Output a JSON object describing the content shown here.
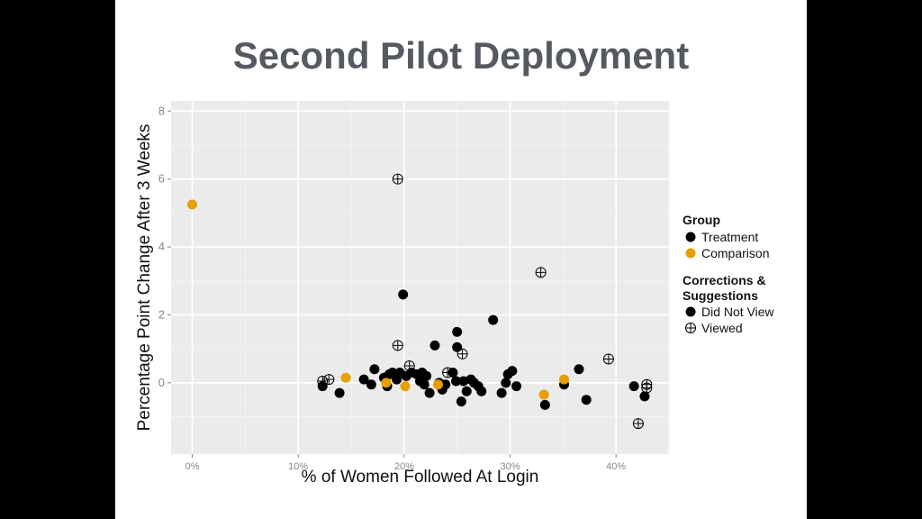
{
  "slide": {
    "title": "Second Pilot Deployment"
  },
  "chart_data": {
    "type": "scatter",
    "title": "",
    "xlabel": "% of Women Followed At Login",
    "ylabel": "Percentage Point Change After 3 Weeks",
    "xlim": [
      -2,
      45
    ],
    "ylim": [
      -2.1,
      8.3
    ],
    "x_ticks": [
      0,
      10,
      20,
      30,
      40
    ],
    "x_tick_labels": [
      "0%",
      "10%",
      "20%",
      "30%",
      "40%"
    ],
    "y_ticks": [
      0,
      2,
      4,
      6,
      8
    ],
    "y_tick_labels": [
      "0",
      "2",
      "4",
      "6",
      "8"
    ],
    "grid": true,
    "legend": {
      "placement": "right",
      "color_title": "Group",
      "color_entries": [
        {
          "label": "Treatment",
          "color": "#000000"
        },
        {
          "label": "Comparison",
          "color": "#E69F00"
        }
      ],
      "shape_title_lines": [
        "Corrections &",
        "Suggestions"
      ],
      "shape_entries": [
        {
          "label": "Did Not View",
          "shape": "filled-circle"
        },
        {
          "label": "Viewed",
          "shape": "circle-plus"
        }
      ]
    },
    "series": [
      {
        "name": "Treatment",
        "color": "#000000",
        "shape": "filled-circle",
        "points": [
          [
            12.3,
            -0.1
          ],
          [
            13.9,
            -0.3
          ],
          [
            16.2,
            0.1
          ],
          [
            16.9,
            -0.05
          ],
          [
            17.2,
            0.4
          ],
          [
            18.1,
            0.15
          ],
          [
            18.4,
            -0.1
          ],
          [
            18.6,
            0.25
          ],
          [
            18.9,
            0.3
          ],
          [
            19.3,
            0.1
          ],
          [
            19.6,
            0.3
          ],
          [
            19.9,
            2.6
          ],
          [
            20.2,
            0.2
          ],
          [
            20.7,
            0.3
          ],
          [
            21.2,
            0.25
          ],
          [
            21.5,
            0.05
          ],
          [
            21.7,
            0.3
          ],
          [
            21.9,
            -0.05
          ],
          [
            22.1,
            0.2
          ],
          [
            22.4,
            -0.3
          ],
          [
            22.9,
            1.1
          ],
          [
            23.3,
            0.0
          ],
          [
            23.6,
            -0.2
          ],
          [
            23.9,
            -0.05
          ],
          [
            24.6,
            0.3
          ],
          [
            24.9,
            0.05
          ],
          [
            25.0,
            1.05
          ],
          [
            25.0,
            1.5
          ],
          [
            25.4,
            -0.55
          ],
          [
            25.6,
            0.05
          ],
          [
            25.9,
            -0.25
          ],
          [
            26.3,
            0.1
          ],
          [
            26.6,
            0.0
          ],
          [
            27.0,
            -0.1
          ],
          [
            27.3,
            -0.25
          ],
          [
            28.4,
            1.85
          ],
          [
            29.2,
            -0.3
          ],
          [
            29.6,
            0.0
          ],
          [
            29.8,
            0.25
          ],
          [
            30.2,
            0.35
          ],
          [
            30.6,
            -0.1
          ],
          [
            33.3,
            -0.65
          ],
          [
            35.1,
            -0.05
          ],
          [
            36.5,
            0.4
          ],
          [
            37.2,
            -0.5
          ],
          [
            41.7,
            -0.1
          ],
          [
            42.7,
            -0.4
          ]
        ]
      },
      {
        "name": "Comparison",
        "color": "#E69F00",
        "shape": "filled-circle",
        "points": [
          [
            0.0,
            5.25
          ],
          [
            14.5,
            0.15
          ],
          [
            18.3,
            0.0
          ],
          [
            20.1,
            -0.1
          ],
          [
            23.2,
            -0.05
          ],
          [
            33.2,
            -0.35
          ],
          [
            35.1,
            0.1
          ]
        ]
      },
      {
        "name": "Viewed",
        "color": "#000000",
        "shape": "circle-plus",
        "points": [
          [
            19.4,
            6.0
          ],
          [
            32.9,
            3.25
          ],
          [
            19.4,
            1.1
          ],
          [
            25.5,
            0.85
          ],
          [
            39.3,
            0.7
          ],
          [
            20.5,
            0.5
          ],
          [
            24.1,
            0.3
          ],
          [
            12.9,
            0.1
          ],
          [
            12.3,
            0.05
          ],
          [
            42.9,
            -0.05
          ],
          [
            42.9,
            -0.15
          ],
          [
            42.1,
            -1.2
          ]
        ]
      }
    ]
  }
}
